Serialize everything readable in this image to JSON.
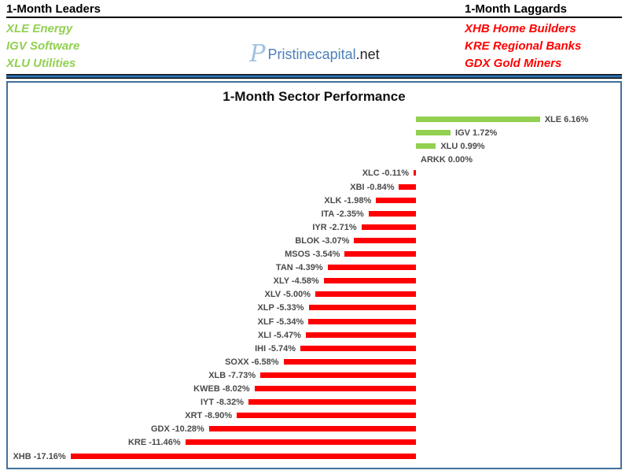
{
  "header": {
    "leaders_title": "1-Month Leaders",
    "laggards_title": "1-Month Laggards",
    "leaders": [
      "XLE Energy",
      "IGV Software",
      "XLU Utilities"
    ],
    "laggards": [
      "XHB Home Builders",
      "KRE Regional Banks",
      "GDX Gold Miners"
    ],
    "leaders_color": "#92D050",
    "laggards_color": "#FF0000"
  },
  "logo": {
    "glyph": "P",
    "name": "Pristinecapital",
    "suffix": ".net"
  },
  "chart_data": {
    "type": "bar",
    "orientation": "horizontal",
    "title": "1-Month Sector Performance",
    "categories": [
      "XLE",
      "IGV",
      "XLU",
      "ARKK",
      "XLC",
      "XBI",
      "XLK",
      "ITA",
      "IYR",
      "BLOK",
      "MSOS",
      "TAN",
      "XLY",
      "XLV",
      "XLP",
      "XLF",
      "XLI",
      "IHI",
      "SOXX",
      "XLB",
      "KWEB",
      "IYT",
      "XRT",
      "GDX",
      "KRE",
      "XHB"
    ],
    "values": [
      6.16,
      1.72,
      0.99,
      0.0,
      -0.11,
      -0.84,
      -1.98,
      -2.35,
      -2.71,
      -3.07,
      -3.54,
      -4.39,
      -4.58,
      -5.0,
      -5.33,
      -5.34,
      -5.47,
      -5.74,
      -6.58,
      -7.73,
      -8.02,
      -8.32,
      -8.9,
      -10.28,
      -11.46,
      -17.16
    ],
    "labels": [
      "XLE 6.16%",
      "IGV 1.72%",
      "XLU 0.99%",
      "ARKK 0.00%",
      "XLC -0.11%",
      "XBI -0.84%",
      "XLK -1.98%",
      "ITA -2.35%",
      "IYR -2.71%",
      "BLOK -3.07%",
      "MSOS -3.54%",
      "TAN -4.39%",
      "XLY -4.58%",
      "XLV -5.00%",
      "XLP -5.33%",
      "XLF -5.34%",
      "XLI -5.47%",
      "IHI -5.74%",
      "SOXX -6.58%",
      "XLB -7.73%",
      "KWEB -8.02%",
      "IYT -8.32%",
      "XRT -8.90%",
      "GDX -10.28%",
      "KRE -11.46%",
      "XHB -17.16%"
    ],
    "xlabel": "",
    "ylabel": "",
    "xlim": [
      -17.16,
      6.16
    ],
    "grid": false,
    "legend": "none",
    "colors": {
      "positive": "#92D050",
      "negative": "#FF0000"
    },
    "label_color": "#4a4a4a",
    "border_color": "#41719C"
  }
}
